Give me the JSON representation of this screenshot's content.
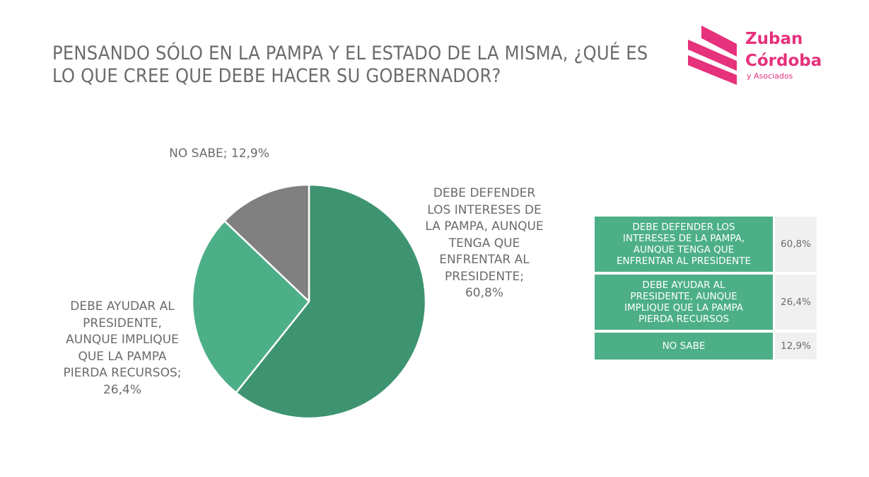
{
  "title": {
    "line1": "PENSANDO SÓLO EN LA PAMPA Y EL ESTADO DE LA MISMA, ¿QUÉ ES",
    "line2": "LO QUE CREE QUE DEBE HACER SU GOBERNADOR?"
  },
  "logo": {
    "line1": "Zuban",
    "line2": "Córdoba",
    "subline": "y Asociados",
    "color": "#e6317c"
  },
  "colors": {
    "defender": "#3e9470",
    "ayudar": "#4caf87",
    "nosabe": "#808080",
    "label_text": "#6b6b6b",
    "legend_value_bg": "#f0f0f0"
  },
  "chart_data": {
    "type": "pie",
    "title": "PENSANDO SÓLO EN LA PAMPA Y EL ESTADO DE LA MISMA, ¿QUÉ ES LO QUE CREE QUE DEBE HACER SU GOBERNADOR?",
    "start": "12 o'clock, clockwise",
    "slices": [
      {
        "key": "defender",
        "value": 60.8,
        "value_label": "60,8%",
        "label_lines": [
          "DEBE DEFENDER",
          "LOS INTERESES DE",
          "LA PAMPA, AUNQUE",
          "TENGA QUE",
          "ENFRENTAR AL",
          "PRESIDENTE;",
          "60,8%"
        ],
        "legend_lines": [
          "DEBE DEFENDER LOS",
          "INTERESES DE LA PAMPA,",
          "AUNQUE TENGA QUE",
          "ENFRENTAR AL PRESIDENTE"
        ]
      },
      {
        "key": "ayudar",
        "value": 26.4,
        "value_label": "26,4%",
        "label_lines": [
          "DEBE AYUDAR AL",
          "PRESIDENTE,",
          "AUNQUE IMPLIQUE",
          "QUE LA PAMPA",
          "PIERDA RECURSOS;",
          "26,4%"
        ],
        "legend_lines": [
          "DEBE AYUDAR AL",
          "PRESIDENTE, AUNQUE",
          "IMPLIQUE QUE LA PAMPA",
          "PIERDA RECURSOS"
        ]
      },
      {
        "key": "nosabe",
        "value": 12.9,
        "value_label": "12,9%",
        "label_lines": [
          "NO SABE; 12,9%"
        ],
        "legend_lines": [
          "NO SABE"
        ]
      }
    ]
  }
}
